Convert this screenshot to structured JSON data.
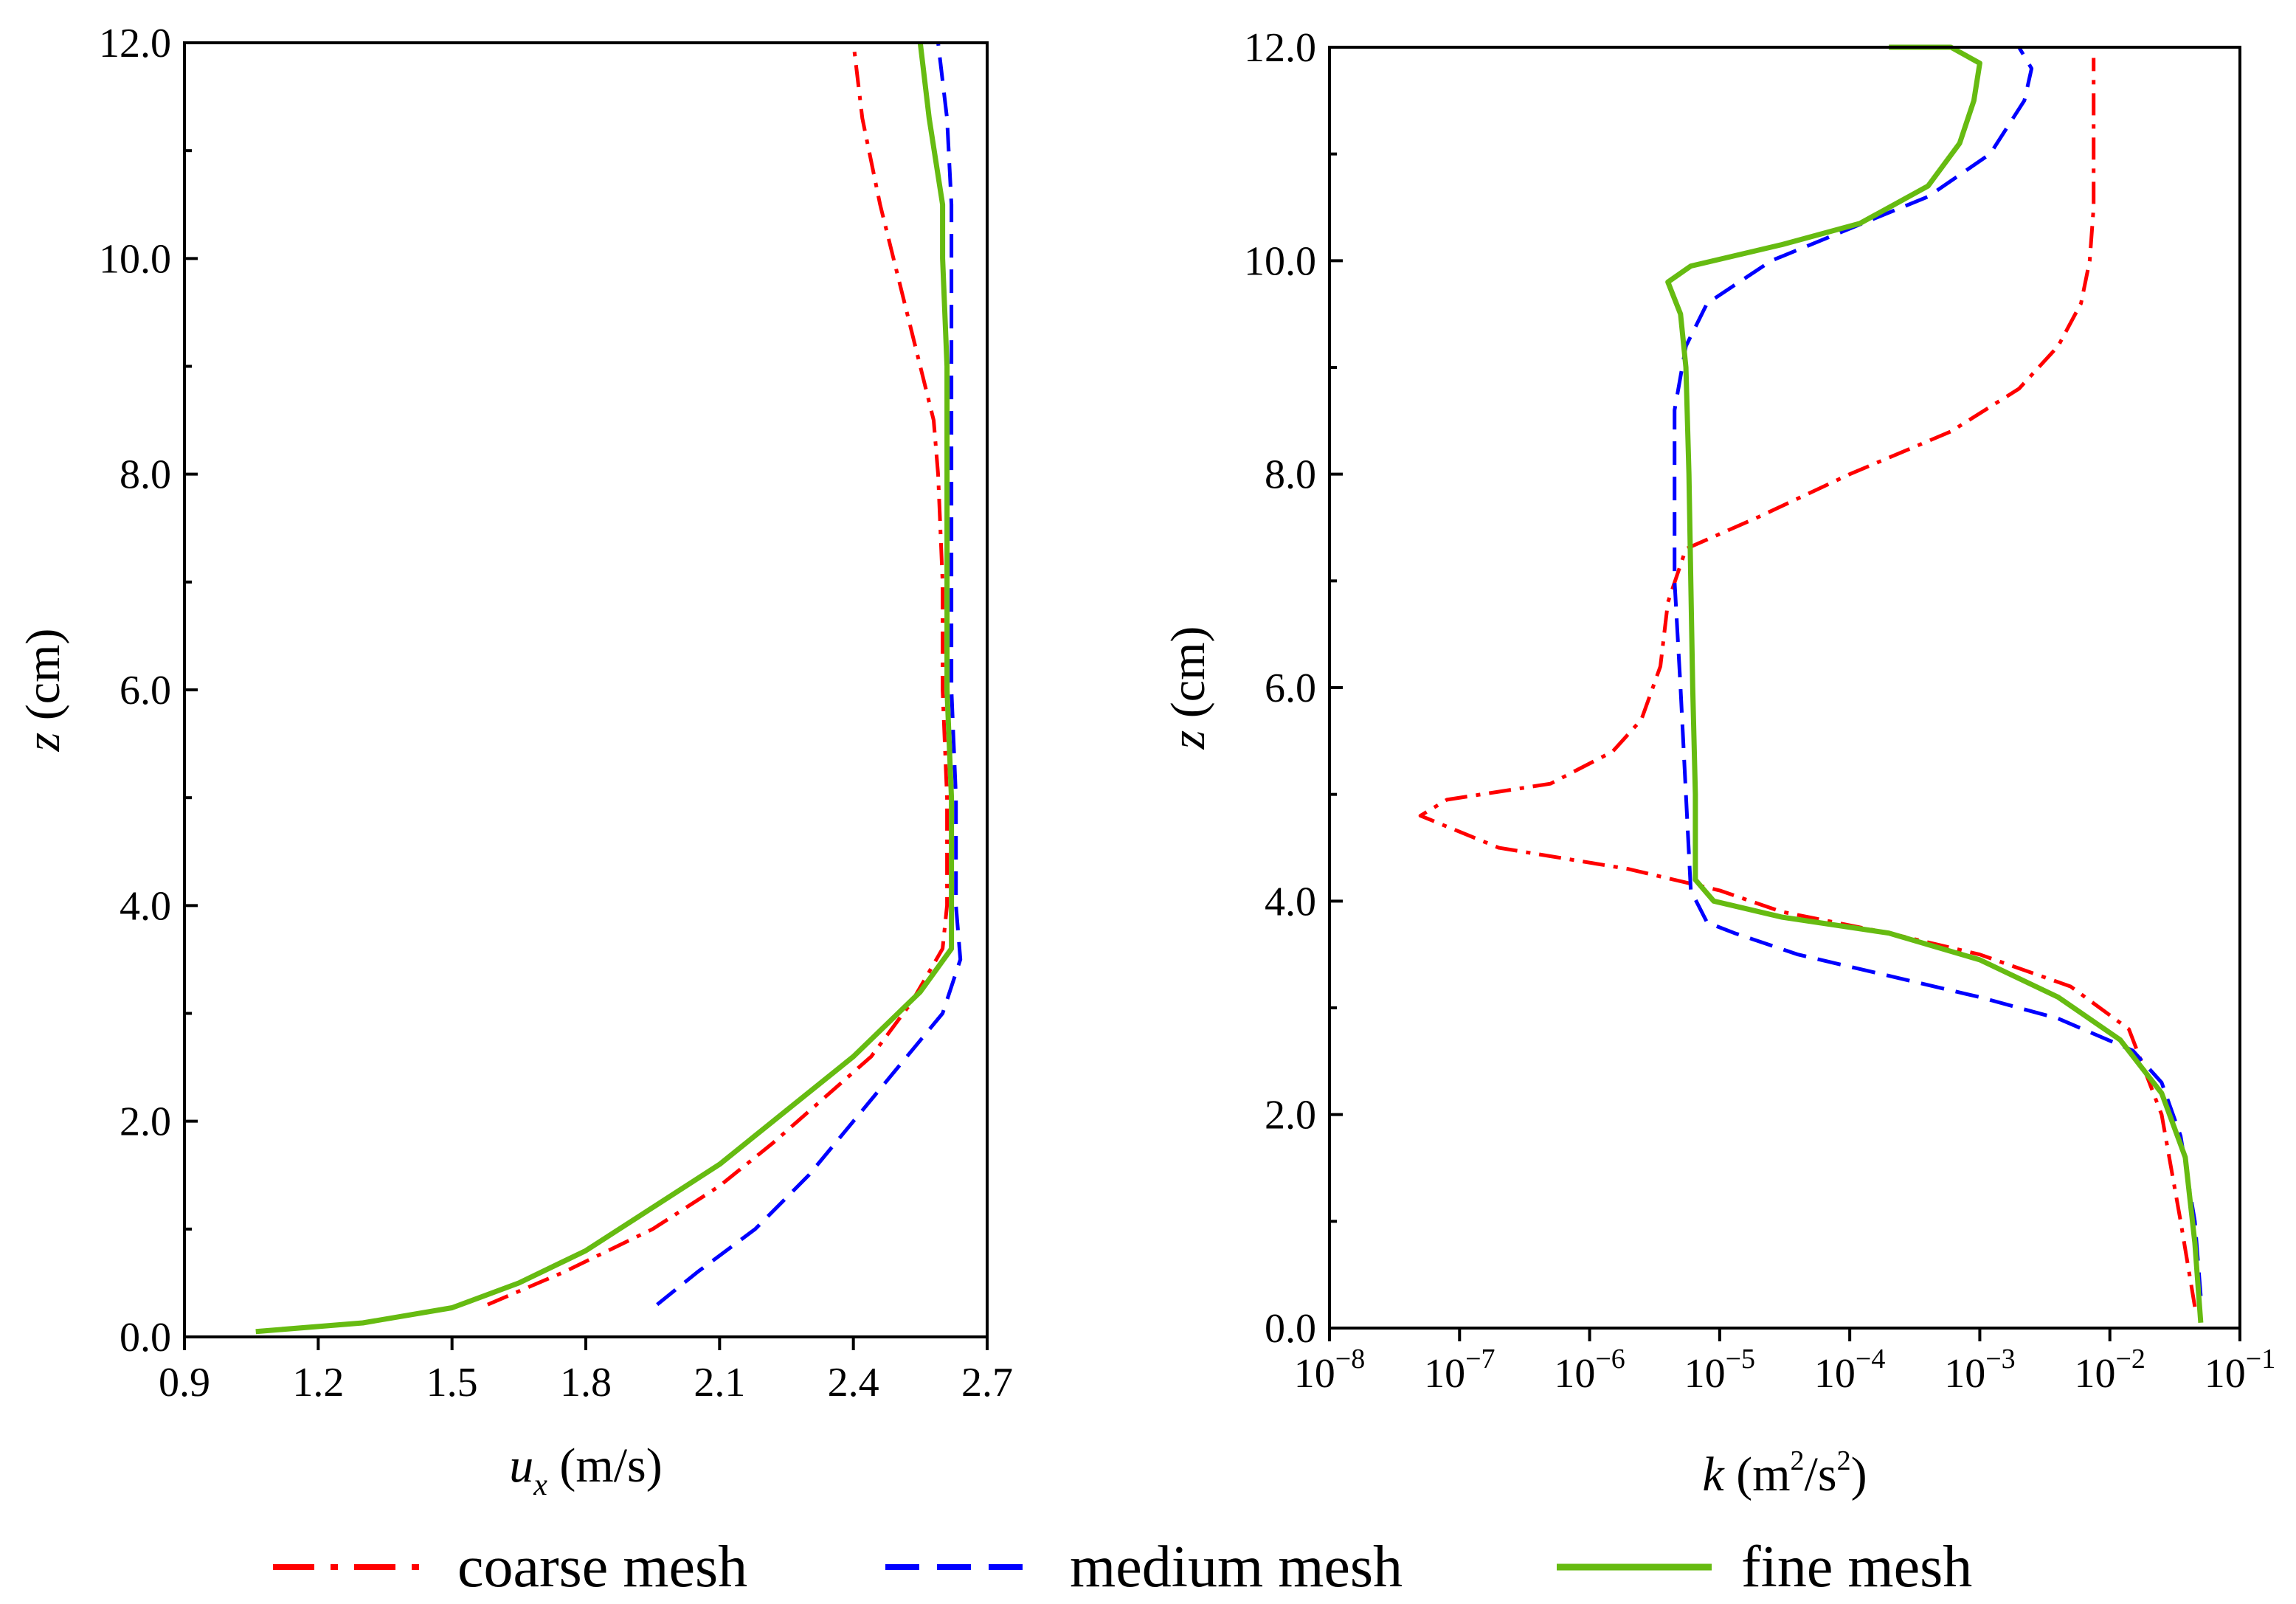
{
  "chart_data": [
    {
      "type": "line",
      "xlabel": {
        "sym": "u",
        "sub": "x",
        "unit": " (m/s)"
      },
      "ylabel": {
        "sym": "z",
        "unit": " (cm)"
      },
      "xlim": [
        0.9,
        2.7
      ],
      "ylim": [
        0,
        12
      ],
      "x_scale": "linear",
      "xticks": [
        {
          "v": 0.9,
          "label": "0.9"
        },
        {
          "v": 1.2,
          "label": "1.2"
        },
        {
          "v": 1.5,
          "label": "1.5"
        },
        {
          "v": 1.8,
          "label": "1.8"
        },
        {
          "v": 2.1,
          "label": "2.1"
        },
        {
          "v": 2.4,
          "label": "2.4"
        },
        {
          "v": 2.7,
          "label": "2.7"
        }
      ],
      "yticks": [
        {
          "v": 0,
          "label": "0.0"
        },
        {
          "v": 2,
          "label": "2.0"
        },
        {
          "v": 4,
          "label": "4.0"
        },
        {
          "v": 6,
          "label": "6.0"
        },
        {
          "v": 8,
          "label": "8.0"
        },
        {
          "v": 10,
          "label": "10.0"
        },
        {
          "v": 12,
          "label": "12.0"
        }
      ],
      "y_minor_ticks": [
        1,
        3,
        5,
        7,
        9,
        11
      ],
      "series": [
        {
          "name": "coarse mesh",
          "color": "#ff0000",
          "style": "dashdot",
          "points": [
            [
              1.58,
              0.3
            ],
            [
              1.75,
              0.6
            ],
            [
              1.95,
              1.0
            ],
            [
              2.1,
              1.4
            ],
            [
              2.22,
              1.8
            ],
            [
              2.33,
              2.2
            ],
            [
              2.44,
              2.6
            ],
            [
              2.53,
              3.1
            ],
            [
              2.6,
              3.6
            ],
            [
              2.61,
              4.0
            ],
            [
              2.61,
              5.0
            ],
            [
              2.6,
              6.0
            ],
            [
              2.6,
              7.0
            ],
            [
              2.59,
              8.0
            ],
            [
              2.58,
              8.5
            ],
            [
              2.52,
              9.5
            ],
            [
              2.46,
              10.5
            ],
            [
              2.42,
              11.3
            ],
            [
              2.4,
              12.0
            ]
          ]
        },
        {
          "name": "medium mesh",
          "color": "#0000ff",
          "style": "dashed",
          "points": [
            [
              1.96,
              0.3
            ],
            [
              2.05,
              0.6
            ],
            [
              2.18,
              1.0
            ],
            [
              2.3,
              1.5
            ],
            [
              2.4,
              2.0
            ],
            [
              2.52,
              2.6
            ],
            [
              2.6,
              3.0
            ],
            [
              2.64,
              3.5
            ],
            [
              2.63,
              4.0
            ],
            [
              2.63,
              5.0
            ],
            [
              2.62,
              6.0
            ],
            [
              2.62,
              7.0
            ],
            [
              2.62,
              8.0
            ],
            [
              2.62,
              9.0
            ],
            [
              2.62,
              10.0
            ],
            [
              2.62,
              10.5
            ],
            [
              2.61,
              11.3
            ],
            [
              2.59,
              12.0
            ]
          ]
        },
        {
          "name": "fine mesh",
          "color": "#66bb11",
          "style": "solid",
          "points": [
            [
              1.06,
              0.05
            ],
            [
              1.3,
              0.13
            ],
            [
              1.5,
              0.27
            ],
            [
              1.65,
              0.5
            ],
            [
              1.8,
              0.8
            ],
            [
              1.95,
              1.2
            ],
            [
              2.1,
              1.6
            ],
            [
              2.25,
              2.1
            ],
            [
              2.4,
              2.6
            ],
            [
              2.55,
              3.2
            ],
            [
              2.62,
              3.6
            ],
            [
              2.62,
              4.0
            ],
            [
              2.62,
              5.0
            ],
            [
              2.61,
              6.0
            ],
            [
              2.61,
              7.0
            ],
            [
              2.61,
              8.0
            ],
            [
              2.61,
              9.0
            ],
            [
              2.6,
              10.0
            ],
            [
              2.6,
              10.5
            ],
            [
              2.57,
              11.3
            ],
            [
              2.55,
              12.0
            ]
          ]
        }
      ]
    },
    {
      "type": "line",
      "xlabel": {
        "sym": "k",
        "unit_pre": " (m",
        "sup1": "2",
        "unit_mid": "/s",
        "sup2": "2",
        "unit_post": ")"
      },
      "ylabel": {
        "sym": "z",
        "unit": " (cm)"
      },
      "xlim": [
        1e-08,
        0.1
      ],
      "ylim": [
        0,
        12
      ],
      "x_scale": "log",
      "xticks": [
        {
          "v": 1e-08,
          "base": "10",
          "exp": "−8"
        },
        {
          "v": 1e-07,
          "base": "10",
          "exp": "−7"
        },
        {
          "v": 1e-06,
          "base": "10",
          "exp": "−6"
        },
        {
          "v": 1e-05,
          "base": "10",
          "exp": "−5"
        },
        {
          "v": 0.0001,
          "base": "10",
          "exp": "−4"
        },
        {
          "v": 0.001,
          "base": "10",
          "exp": "−3"
        },
        {
          "v": 0.01,
          "base": "10",
          "exp": "−2"
        },
        {
          "v": 0.1,
          "base": "10",
          "exp": "−1"
        }
      ],
      "yticks": [
        {
          "v": 0,
          "label": "0.0"
        },
        {
          "v": 2,
          "label": "2.0"
        },
        {
          "v": 4,
          "label": "4.0"
        },
        {
          "v": 6,
          "label": "6.0"
        },
        {
          "v": 8,
          "label": "8.0"
        },
        {
          "v": 10,
          "label": "10.0"
        },
        {
          "v": 12,
          "label": "12.0"
        }
      ],
      "y_minor_ticks": [
        1,
        3,
        5,
        7,
        9,
        11
      ],
      "series": [
        {
          "name": "coarse mesh",
          "color": "#ff0000",
          "style": "dashdot",
          "points": [
            [
              0.045,
              0.2
            ],
            [
              0.035,
              1.0
            ],
            [
              0.025,
              2.0
            ],
            [
              0.014,
              2.8
            ],
            [
              0.005,
              3.2
            ],
            [
              0.001,
              3.5
            ],
            [
              0.0002,
              3.7
            ],
            [
              3e-05,
              3.9
            ],
            [
              1e-05,
              4.1
            ],
            [
              2e-06,
              4.3
            ],
            [
              2e-07,
              4.5
            ],
            [
              5e-08,
              4.8
            ],
            [
              8e-08,
              4.95
            ],
            [
              5e-07,
              5.1
            ],
            [
              1.5e-06,
              5.4
            ],
            [
              2.5e-06,
              5.7
            ],
            [
              3.5e-06,
              6.2
            ],
            [
              4e-06,
              6.8
            ],
            [
              5.5e-06,
              7.3
            ],
            [
              2e-05,
              7.6
            ],
            [
              0.0001,
              8.0
            ],
            [
              0.0006,
              8.4
            ],
            [
              0.002,
              8.8
            ],
            [
              0.004,
              9.2
            ],
            [
              0.006,
              9.6
            ],
            [
              0.007,
              10.0
            ],
            [
              0.0075,
              10.5
            ],
            [
              0.0075,
              11.0
            ],
            [
              0.0075,
              11.9
            ]
          ]
        },
        {
          "name": "medium mesh",
          "color": "#0000ff",
          "style": "dashed",
          "points": [
            [
              0.05,
              0.3
            ],
            [
              0.045,
              1.0
            ],
            [
              0.035,
              1.8
            ],
            [
              0.025,
              2.3
            ],
            [
              0.015,
              2.6
            ],
            [
              0.004,
              2.9
            ],
            [
              0.001,
              3.1
            ],
            [
              0.0002,
              3.3
            ],
            [
              4e-05,
              3.5
            ],
            [
              1.3e-05,
              3.7
            ],
            [
              8e-06,
              3.8
            ],
            [
              6e-06,
              4.1
            ],
            [
              5.5e-06,
              5.0
            ],
            [
              5e-06,
              6.0
            ],
            [
              4.5e-06,
              7.0
            ],
            [
              4.5e-06,
              8.0
            ],
            [
              4.5e-06,
              8.6
            ],
            [
              5.5e-06,
              9.2
            ],
            [
              8e-06,
              9.6
            ],
            [
              2.5e-05,
              10.0
            ],
            [
              0.0001,
              10.3
            ],
            [
              0.0004,
              10.6
            ],
            [
              0.0012,
              11.0
            ],
            [
              0.0022,
              11.5
            ],
            [
              0.0025,
              11.8
            ],
            [
              0.002,
              12.0
            ]
          ]
        },
        {
          "name": "fine mesh",
          "color": "#66bb11",
          "style": "solid",
          "points": [
            [
              0.05,
              0.05
            ],
            [
              0.045,
              0.8
            ],
            [
              0.038,
              1.6
            ],
            [
              0.025,
              2.2
            ],
            [
              0.012,
              2.7
            ],
            [
              0.004,
              3.1
            ],
            [
              0.001,
              3.45
            ],
            [
              0.0002,
              3.7
            ],
            [
              3e-05,
              3.85
            ],
            [
              9e-06,
              4.0
            ],
            [
              6.5e-06,
              4.2
            ],
            [
              6.5e-06,
              5.0
            ],
            [
              6.2e-06,
              6.0
            ],
            [
              6e-06,
              7.0
            ],
            [
              5.8e-06,
              8.0
            ],
            [
              5.5e-06,
              9.0
            ],
            [
              5e-06,
              9.5
            ],
            [
              4e-06,
              9.8
            ],
            [
              6e-06,
              9.95
            ],
            [
              3e-05,
              10.15
            ],
            [
              0.00012,
              10.35
            ],
            [
              0.0004,
              10.7
            ],
            [
              0.0007,
              11.1
            ],
            [
              0.0009,
              11.5
            ],
            [
              0.001,
              11.85
            ],
            [
              0.0006,
              12.0
            ],
            [
              0.0002,
              12.0
            ]
          ]
        }
      ]
    }
  ],
  "legend": [
    {
      "label": "coarse mesh",
      "color": "#ff0000",
      "style": "dashdot"
    },
    {
      "label": "medium mesh",
      "color": "#0000ff",
      "style": "dashed"
    },
    {
      "label": "fine mesh",
      "color": "#66bb11",
      "style": "solid"
    }
  ]
}
